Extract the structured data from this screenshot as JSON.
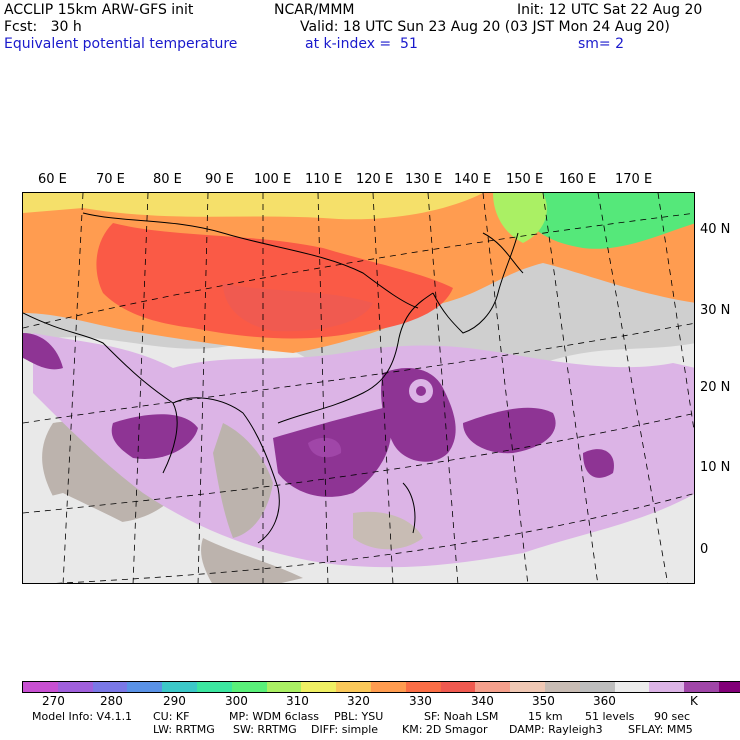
{
  "header": {
    "line1_left": "ACCLIP 15km ARW-GFS init",
    "line1_center": "NCAR/MMM",
    "line1_right": "Init: 12 UTC Sat 22 Aug 20",
    "line2_left": "Fcst:   30 h",
    "line2_right": "Valid: 18 UTC Sun 23 Aug 20 (03 JST Mon 24 Aug 20)",
    "line3_left": "Equivalent potential temperature",
    "line3_center": "at k-index =  51",
    "line3_right": "sm= 2"
  },
  "map": {
    "lon_labels": [
      "60 E",
      "70 E",
      "80 E",
      "90 E",
      "100 E",
      "110 E",
      "120 E",
      "130 E",
      "140 E",
      "150 E",
      "160 E",
      "170 E"
    ],
    "lat_labels": [
      "40 N",
      "30 N",
      "20 N",
      "10 N",
      "0"
    ],
    "regions": [
      {
        "name": "high-latitude",
        "value": 322,
        "color": "#ff9c50"
      },
      {
        "name": "north-china",
        "value": 330,
        "color": "#fa5a46"
      },
      {
        "name": "far-east-siberia",
        "value": 300,
        "color": "#55e87a"
      },
      {
        "name": "typhoon",
        "value": 368,
        "color": "#8e3494"
      },
      {
        "name": "tropical-pacific",
        "value": 360,
        "color": "#d9b8e0"
      },
      {
        "name": "background",
        "value": 352,
        "color": "#cfcfcf"
      }
    ]
  },
  "colorbar": {
    "colors": [
      "#c850d2",
      "#a060dc",
      "#7a78e6",
      "#5a92e6",
      "#3cc8c8",
      "#3ce6a0",
      "#5af07a",
      "#aaf064",
      "#f0f064",
      "#fac85a",
      "#ff9c50",
      "#fa6e46",
      "#f05a50",
      "#f5a08c",
      "#f0c8b4",
      "#c8bcb4",
      "#bebebe",
      "#ececec",
      "#dcb4e6",
      "#a046a8",
      "#820078"
    ],
    "tick_labels": [
      "270",
      "280",
      "290",
      "300",
      "310",
      "320",
      "330",
      "340",
      "350",
      "360"
    ],
    "unit": "K"
  },
  "footer": {
    "line1": [
      "Model Info: V4.1.1",
      "CU: KF",
      "MP: WDM 6class",
      "PBL: YSU",
      "SF: Noah LSM",
      "15 km",
      "51 levels",
      "90 sec"
    ],
    "line2": [
      "LW: RRTMG",
      "SW: RRTMG",
      "DIFF: simple",
      "KM: 2D Smagor",
      "DAMP: Rayleigh3",
      "SFLAY: MM5"
    ]
  }
}
